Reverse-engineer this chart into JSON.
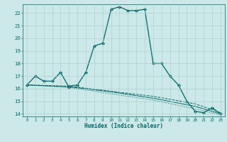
{
  "xlabel": "Humidex (Indice chaleur)",
  "ylabel": "",
  "background_color": "#cce8e8",
  "line_color": "#006666",
  "grid_color": "#aacccc",
  "xlim": [
    -0.5,
    23.5
  ],
  "ylim": [
    13.8,
    22.7
  ],
  "yticks": [
    14,
    15,
    16,
    17,
    18,
    19,
    20,
    21,
    22
  ],
  "xticks": [
    0,
    1,
    2,
    3,
    4,
    5,
    6,
    7,
    8,
    9,
    10,
    11,
    12,
    13,
    14,
    15,
    16,
    17,
    18,
    19,
    20,
    21,
    22,
    23
  ],
  "lines": [
    {
      "x": [
        0,
        1,
        2,
        3,
        4,
        5,
        5,
        6,
        7,
        8,
        9,
        10,
        11,
        12,
        13,
        14,
        15,
        16,
        17,
        18,
        19,
        20,
        21,
        22,
        23
      ],
      "y": [
        16.3,
        17.0,
        16.6,
        16.6,
        17.3,
        16.1,
        16.2,
        16.3,
        17.3,
        19.4,
        19.6,
        22.3,
        22.5,
        22.2,
        22.2,
        22.3,
        18.0,
        18.0,
        17.0,
        16.3,
        15.0,
        14.2,
        14.1,
        14.5,
        14.0
      ],
      "marker": "D",
      "markersize": 2.0,
      "linestyle": "-",
      "linewidth": 0.9
    },
    {
      "x": [
        0,
        5,
        10,
        15,
        20,
        23
      ],
      "y": [
        16.3,
        16.2,
        15.8,
        15.4,
        14.8,
        14.1
      ],
      "marker": null,
      "linestyle": "--",
      "linewidth": 0.7
    },
    {
      "x": [
        0,
        5,
        10,
        15,
        20,
        23
      ],
      "y": [
        16.3,
        16.15,
        15.75,
        15.25,
        14.6,
        14.0
      ],
      "marker": null,
      "linestyle": "-",
      "linewidth": 0.7
    },
    {
      "x": [
        0,
        5,
        10,
        15,
        20,
        23
      ],
      "y": [
        16.3,
        16.1,
        15.6,
        15.1,
        14.4,
        13.9
      ],
      "marker": null,
      "linestyle": ":",
      "linewidth": 0.7
    }
  ]
}
